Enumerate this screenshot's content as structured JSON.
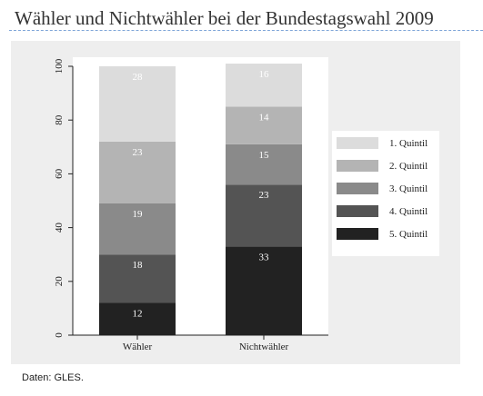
{
  "page": {
    "title": "Wähler und Nichtwähler bei der Bundestagswahl 2009",
    "source_note": "Daten: GLES."
  },
  "chart_data": {
    "type": "bar",
    "stacked": true,
    "categories": [
      "Wähler",
      "Nichtwähler"
    ],
    "series": [
      {
        "name": "1. Quintil",
        "color": "#dcdcdc",
        "label_color": "#ffffff",
        "values": [
          28,
          16
        ]
      },
      {
        "name": "2. Quintil",
        "color": "#b4b4b4",
        "label_color": "#ffffff",
        "values": [
          23,
          14
        ]
      },
      {
        "name": "3. Quintil",
        "color": "#8a8a8a",
        "label_color": "#ffffff",
        "values": [
          19,
          15
        ]
      },
      {
        "name": "4. Quintil",
        "color": "#545454",
        "label_color": "#ffffff",
        "values": [
          18,
          23
        ]
      },
      {
        "name": "5. Quintil",
        "color": "#222222",
        "label_color": "#ffffff",
        "values": [
          12,
          33
        ]
      }
    ],
    "ylim": [
      0,
      100
    ],
    "yticks": [
      "0",
      "20",
      "40",
      "60",
      "80",
      "100"
    ],
    "grid": false,
    "legend_position": "right"
  }
}
